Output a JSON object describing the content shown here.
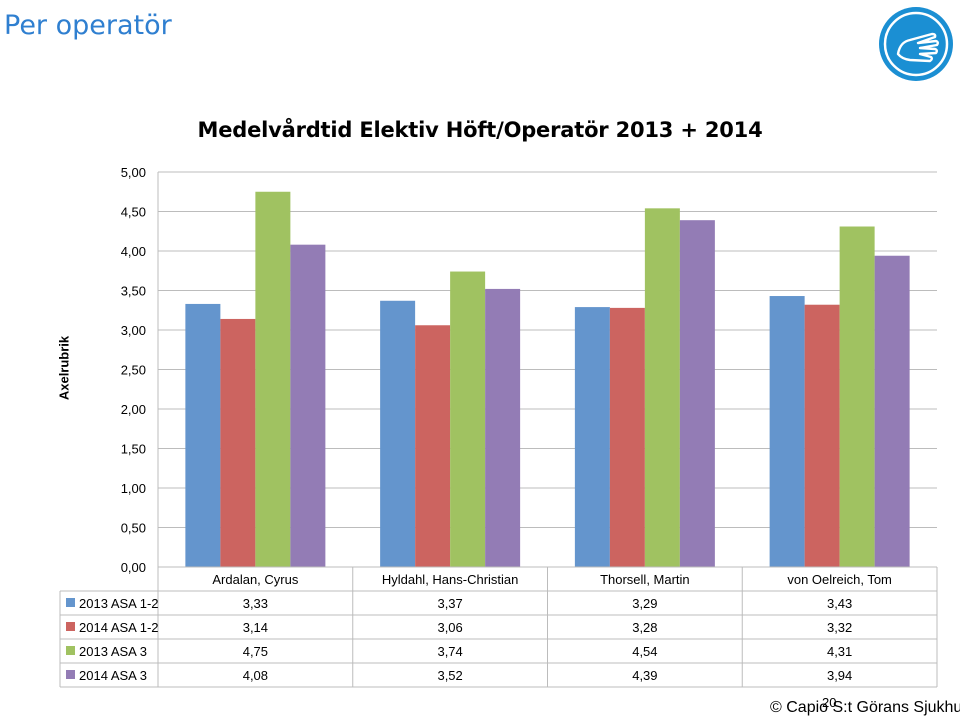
{
  "slide": {
    "title": "Per operatör",
    "footer": "© Capio S:t Görans Sjukhus",
    "page_number": "20"
  },
  "colors": {
    "title": "#2f7fd0",
    "logo": "#1b8fd3",
    "series": [
      "#6495cd",
      "#cc6460",
      "#a0c261",
      "#937cb5"
    ]
  },
  "chart_data": {
    "type": "bar",
    "title": "Medelvårdtid Elektiv Höft/Operatör 2013 + 2014",
    "ylabel": "Axelrubrik",
    "xlabel": "",
    "ylim": [
      0,
      5
    ],
    "ytick_labels": [
      "0,00",
      "0,50",
      "1,00",
      "1,50",
      "2,00",
      "2,50",
      "3,00",
      "3,50",
      "4,00",
      "4,50",
      "5,00"
    ],
    "grid": true,
    "legend": "data-table",
    "categories": [
      "Ardalan, Cyrus",
      "Hyldahl, Hans-Christian",
      "Thorsell, Martin",
      "von Oelreich, Tom"
    ],
    "series": [
      {
        "name": "2013 ASA 1-2",
        "values": [
          3.33,
          3.37,
          3.29,
          3.43
        ],
        "labels": [
          "3,33",
          "3,37",
          "3,29",
          "3,43"
        ]
      },
      {
        "name": "2014 ASA 1-2",
        "values": [
          3.14,
          3.06,
          3.28,
          3.32
        ],
        "labels": [
          "3,14",
          "3,06",
          "3,28",
          "3,32"
        ]
      },
      {
        "name": "2013 ASA 3",
        "values": [
          4.75,
          3.74,
          4.54,
          4.31
        ],
        "labels": [
          "4,75",
          "3,74",
          "4,54",
          "4,31"
        ]
      },
      {
        "name": "2014 ASA 3",
        "values": [
          4.08,
          3.52,
          4.39,
          3.94
        ],
        "labels": [
          "4,08",
          "3,52",
          "4,39",
          "3,94"
        ]
      }
    ]
  }
}
